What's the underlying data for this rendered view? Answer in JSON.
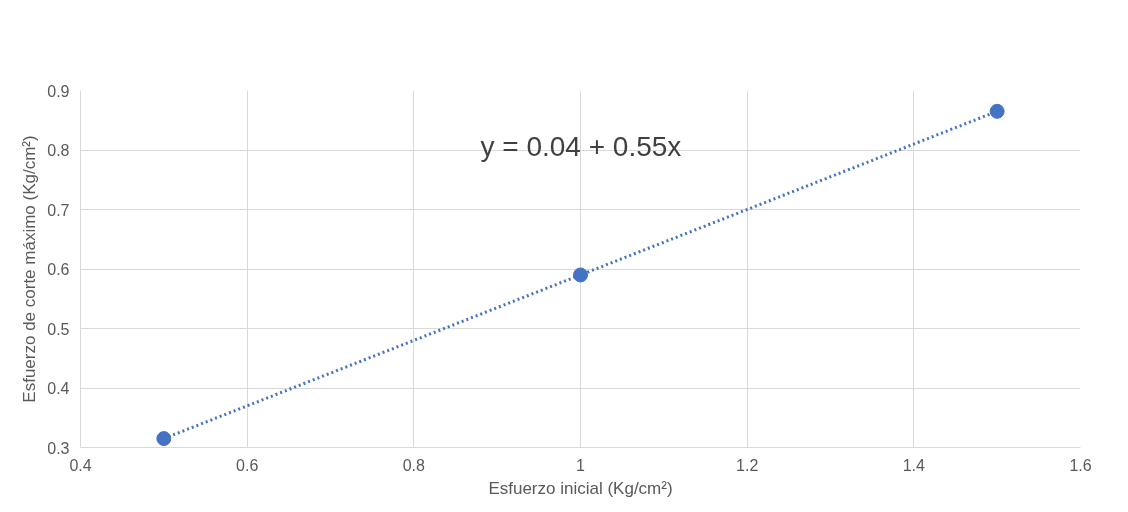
{
  "chart_data": {
    "type": "scatter",
    "xlabel": "Esfuerzo inicial (Kg/cm²)",
    "ylabel": "Esfuerzo de corte máximo (Kg/cm²)",
    "annotations": [
      "y = 0.04 + 0.55x"
    ],
    "series": [
      {
        "color": "#4472c4",
        "x": [
          0.5,
          1,
          1.5
        ],
        "values": [
          0.315,
          0.59,
          0.865
        ],
        "marker": "circle"
      },
      {
        "type": "line",
        "color": "#4472c4",
        "x": [
          0.5,
          1.5
        ],
        "values": [
          0.315,
          0.865
        ],
        "line_style": "dotted",
        "marker": "none"
      }
    ],
    "xlim": [
      0.4,
      1.6
    ],
    "xticks": [
      0.4,
      0.6,
      0.8,
      1,
      1.2,
      1.4,
      1.6
    ],
    "ylim": [
      0.3,
      0.9
    ],
    "yticks": [
      0.3,
      0.4,
      0.5,
      0.6,
      0.7,
      0.8,
      0.9
    ],
    "grid": true
  }
}
